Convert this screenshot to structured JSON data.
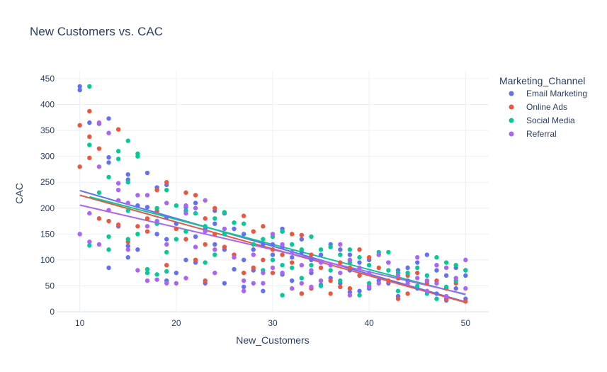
{
  "chart_data": {
    "type": "scatter",
    "title": "New Customers vs. CAC",
    "xlabel": "New_Customers",
    "ylabel": "CAC",
    "xlim": [
      7.6,
      52.4
    ],
    "ylim": [
      0,
      465
    ],
    "xticks": [
      10,
      20,
      30,
      40,
      50
    ],
    "yticks": [
      0,
      50,
      100,
      150,
      200,
      250,
      300,
      350,
      400,
      450
    ],
    "grid": true,
    "legend_title": "Marketing_Channel",
    "legend_position": "right",
    "trendline": "ols",
    "series": [
      {
        "name": "Email Marketing",
        "color": "#636efa",
        "trend": [
          [
            10,
            234
          ],
          [
            50,
            19
          ]
        ],
        "points": [
          [
            10,
            435
          ],
          [
            10,
            428
          ],
          [
            11,
            365
          ],
          [
            12,
            363
          ],
          [
            13,
            373
          ],
          [
            13,
            298
          ],
          [
            13,
            288
          ],
          [
            13,
            85
          ],
          [
            14,
            165
          ],
          [
            15,
            265
          ],
          [
            15,
            255
          ],
          [
            15,
            127
          ],
          [
            15,
            105
          ],
          [
            16,
            205
          ],
          [
            16,
            120
          ],
          [
            17,
            268
          ],
          [
            17,
            202
          ],
          [
            18,
            240
          ],
          [
            18,
            150
          ],
          [
            19,
            245
          ],
          [
            19,
            182
          ],
          [
            19,
            140
          ],
          [
            19,
            60
          ],
          [
            20,
            170
          ],
          [
            20,
            75
          ],
          [
            21,
            202
          ],
          [
            21,
            195
          ],
          [
            21,
            100
          ],
          [
            22,
            210
          ],
          [
            22,
            145
          ],
          [
            22,
            95
          ],
          [
            23,
            160
          ],
          [
            23,
            55
          ],
          [
            24,
            195
          ],
          [
            24,
            170
          ],
          [
            24,
            130
          ],
          [
            25,
            190
          ],
          [
            25,
            120
          ],
          [
            25,
            55
          ],
          [
            26,
            160
          ],
          [
            26,
            82
          ],
          [
            27,
            150
          ],
          [
            27,
            100
          ],
          [
            27,
            48
          ],
          [
            28,
            120
          ],
          [
            28,
            80
          ],
          [
            29,
            130
          ],
          [
            29,
            40
          ],
          [
            30,
            130
          ],
          [
            30,
            110
          ],
          [
            31,
            160
          ],
          [
            31,
            125
          ],
          [
            31,
            72
          ],
          [
            32,
            105
          ],
          [
            32,
            60
          ],
          [
            33,
            140
          ],
          [
            33,
            115
          ],
          [
            33,
            35
          ],
          [
            34,
            100
          ],
          [
            34,
            75
          ],
          [
            35,
            110
          ],
          [
            35,
            52
          ],
          [
            36,
            130
          ],
          [
            36,
            65
          ],
          [
            37,
            120
          ],
          [
            37,
            55
          ],
          [
            38,
            110
          ],
          [
            38,
            80
          ],
          [
            38,
            38
          ],
          [
            39,
            95
          ],
          [
            39,
            40
          ],
          [
            40,
            100
          ],
          [
            40,
            45
          ],
          [
            41,
            60
          ],
          [
            42,
            95
          ],
          [
            42,
            55
          ],
          [
            43,
            80
          ],
          [
            43,
            30
          ],
          [
            44,
            85
          ],
          [
            44,
            60
          ],
          [
            45,
            95
          ],
          [
            45,
            45
          ],
          [
            46,
            110
          ],
          [
            46,
            60
          ],
          [
            47,
            80
          ],
          [
            47,
            35
          ],
          [
            48,
            70
          ],
          [
            48,
            22
          ],
          [
            49,
            85
          ],
          [
            49,
            45
          ],
          [
            50,
            70
          ],
          [
            50,
            25
          ]
        ]
      },
      {
        "name": "Online Ads",
        "color": "#ef553b",
        "trend": [
          [
            10,
            225
          ],
          [
            50,
            18
          ]
        ],
        "points": [
          [
            10,
            360
          ],
          [
            10,
            280
          ],
          [
            11,
            387
          ],
          [
            11,
            338
          ],
          [
            11,
            297
          ],
          [
            12,
            315
          ],
          [
            12,
            180
          ],
          [
            13,
            175
          ],
          [
            14,
            352
          ],
          [
            14,
            168
          ],
          [
            15,
            135
          ],
          [
            16,
            165
          ],
          [
            17,
            180
          ],
          [
            17,
            155
          ],
          [
            18,
            235
          ],
          [
            18,
            195
          ],
          [
            19,
            250
          ],
          [
            19,
            90
          ],
          [
            20,
            160
          ],
          [
            21,
            230
          ],
          [
            21,
            140
          ],
          [
            22,
            225
          ],
          [
            22,
            100
          ],
          [
            23,
            180
          ],
          [
            23,
            130
          ],
          [
            23,
            60
          ],
          [
            24,
            200
          ],
          [
            24,
            150
          ],
          [
            25,
            125
          ],
          [
            26,
            110
          ],
          [
            27,
            185
          ],
          [
            27,
            75
          ],
          [
            28,
            155
          ],
          [
            28,
            85
          ],
          [
            29,
            165
          ],
          [
            29,
            100
          ],
          [
            30,
            120
          ],
          [
            30,
            75
          ],
          [
            31,
            155
          ],
          [
            31,
            110
          ],
          [
            32,
            150
          ],
          [
            32,
            95
          ],
          [
            33,
            148
          ],
          [
            33,
            35
          ],
          [
            34,
            110
          ],
          [
            34,
            45
          ],
          [
            35,
            85
          ],
          [
            36,
            60
          ],
          [
            36,
            35
          ],
          [
            37,
            95
          ],
          [
            37,
            48
          ],
          [
            38,
            85
          ],
          [
            38,
            45
          ],
          [
            39,
            120
          ],
          [
            39,
            70
          ],
          [
            40,
            105
          ],
          [
            40,
            50
          ],
          [
            41,
            85
          ],
          [
            42,
            60
          ],
          [
            43,
            65
          ],
          [
            43,
            25
          ],
          [
            44,
            70
          ],
          [
            44,
            35
          ],
          [
            45,
            75
          ],
          [
            46,
            55
          ],
          [
            47,
            60
          ],
          [
            48,
            45
          ],
          [
            48,
            25
          ],
          [
            49,
            55
          ],
          [
            50,
            80
          ],
          [
            50,
            20
          ]
        ]
      },
      {
        "name": "Social Media",
        "color": "#00cc96",
        "trend": [
          [
            11,
            222
          ],
          [
            50,
            33
          ]
        ],
        "points": [
          [
            11,
            435
          ],
          [
            11,
            322
          ],
          [
            11,
            128
          ],
          [
            12,
            230
          ],
          [
            13,
            260
          ],
          [
            13,
            145
          ],
          [
            13,
            120
          ],
          [
            14,
            310
          ],
          [
            14,
            295
          ],
          [
            15,
            330
          ],
          [
            15,
            250
          ],
          [
            15,
            195
          ],
          [
            15,
            140
          ],
          [
            16,
            305
          ],
          [
            16,
            300
          ],
          [
            16,
            150
          ],
          [
            17,
            82
          ],
          [
            17,
            75
          ],
          [
            18,
            200
          ],
          [
            18,
            170
          ],
          [
            18,
            72
          ],
          [
            19,
            235
          ],
          [
            19,
            115
          ],
          [
            19,
            78
          ],
          [
            20,
            205
          ],
          [
            20,
            140
          ],
          [
            21,
            195
          ],
          [
            21,
            155
          ],
          [
            22,
            190
          ],
          [
            23,
            165
          ],
          [
            23,
            95
          ],
          [
            24,
            180
          ],
          [
            24,
            110
          ],
          [
            25,
            192
          ],
          [
            25,
            150
          ],
          [
            26,
            172
          ],
          [
            27,
            170
          ],
          [
            28,
            130
          ],
          [
            29,
            140
          ],
          [
            29,
            80
          ],
          [
            30,
            145
          ],
          [
            30,
            100
          ],
          [
            31,
            155
          ],
          [
            31,
            90
          ],
          [
            31,
            32
          ],
          [
            32,
            130
          ],
          [
            32,
            85
          ],
          [
            33,
            120
          ],
          [
            33,
            65
          ],
          [
            34,
            145
          ],
          [
            34,
            90
          ],
          [
            35,
            120
          ],
          [
            35,
            50
          ],
          [
            36,
            125
          ],
          [
            36,
            80
          ],
          [
            37,
            110
          ],
          [
            37,
            60
          ],
          [
            38,
            120
          ],
          [
            38,
            95
          ],
          [
            39,
            105
          ],
          [
            39,
            32
          ],
          [
            40,
            90
          ],
          [
            40,
            55
          ],
          [
            41,
            115
          ],
          [
            42,
            115
          ],
          [
            42,
            80
          ],
          [
            43,
            75
          ],
          [
            43,
            40
          ],
          [
            44,
            75
          ],
          [
            45,
            85
          ],
          [
            45,
            50
          ],
          [
            46,
            70
          ],
          [
            46,
            35
          ],
          [
            47,
            105
          ],
          [
            47,
            25
          ],
          [
            48,
            95
          ],
          [
            48,
            48
          ],
          [
            49,
            90
          ],
          [
            49,
            60
          ],
          [
            50,
            80
          ]
        ]
      },
      {
        "name": "Referral",
        "color": "#ab63fa",
        "trend": [
          [
            10,
            206
          ],
          [
            50,
            34
          ]
        ],
        "points": [
          [
            10,
            150
          ],
          [
            11,
            190
          ],
          [
            11,
            135
          ],
          [
            12,
            365
          ],
          [
            12,
            280
          ],
          [
            12,
            130
          ],
          [
            13,
            345
          ],
          [
            13,
            196
          ],
          [
            14,
            248
          ],
          [
            14,
            235
          ],
          [
            14,
            215
          ],
          [
            15,
            210
          ],
          [
            15,
            120
          ],
          [
            16,
            225
          ],
          [
            16,
            80
          ],
          [
            17,
            225
          ],
          [
            17,
            165
          ],
          [
            17,
            60
          ],
          [
            18,
            175
          ],
          [
            18,
            62
          ],
          [
            19,
            210
          ],
          [
            19,
            130
          ],
          [
            19,
            55
          ],
          [
            20,
            55
          ],
          [
            21,
            205
          ],
          [
            21,
            190
          ],
          [
            21,
            65
          ],
          [
            22,
            200
          ],
          [
            22,
            125
          ],
          [
            23,
            215
          ],
          [
            23,
            155
          ],
          [
            24,
            120
          ],
          [
            24,
            75
          ],
          [
            25,
            160
          ],
          [
            26,
            105
          ],
          [
            27,
            60
          ],
          [
            27,
            40
          ],
          [
            28,
            110
          ],
          [
            28,
            55
          ],
          [
            29,
            75
          ],
          [
            29,
            55
          ],
          [
            30,
            150
          ],
          [
            30,
            85
          ],
          [
            31,
            130
          ],
          [
            31,
            75
          ],
          [
            32,
            115
          ],
          [
            32,
            45
          ],
          [
            33,
            90
          ],
          [
            33,
            55
          ],
          [
            34,
            80
          ],
          [
            34,
            48
          ],
          [
            35,
            95
          ],
          [
            35,
            60
          ],
          [
            36,
            90
          ],
          [
            37,
            130
          ],
          [
            37,
            75
          ],
          [
            38,
            100
          ],
          [
            38,
            32
          ],
          [
            39,
            85
          ],
          [
            40,
            75
          ],
          [
            40,
            48
          ],
          [
            41,
            110
          ],
          [
            41,
            55
          ],
          [
            42,
            95
          ],
          [
            43,
            70
          ],
          [
            44,
            55
          ],
          [
            45,
            105
          ],
          [
            45,
            65
          ],
          [
            46,
            60
          ],
          [
            46,
            40
          ],
          [
            47,
            90
          ],
          [
            47,
            55
          ],
          [
            48,
            85
          ],
          [
            48,
            30
          ],
          [
            49,
            65
          ],
          [
            50,
            100
          ],
          [
            50,
            45
          ]
        ]
      }
    ]
  }
}
